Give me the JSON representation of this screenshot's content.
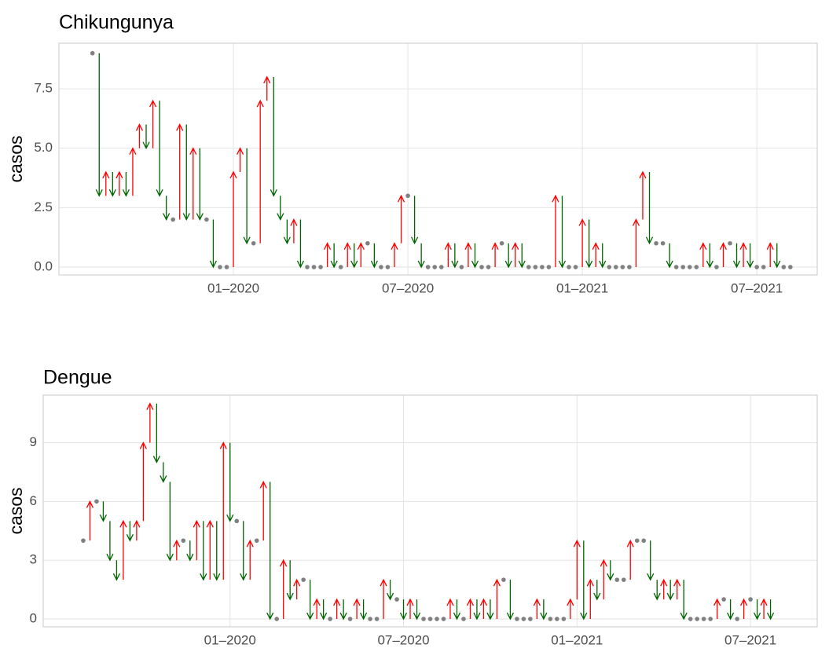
{
  "chart_data": [
    {
      "type": "arrow-change",
      "title": "Chikungunya",
      "y_label": "casos",
      "x": [
        -21,
        -20,
        -19,
        -18,
        -17,
        -16,
        -15,
        -14,
        -13,
        -12,
        -11,
        -10,
        -9,
        -8,
        -7,
        -6,
        -5,
        -4,
        -3,
        -2,
        -1,
        0,
        1,
        2,
        3,
        4,
        5,
        6,
        7,
        8,
        9,
        10,
        11,
        12,
        13,
        14,
        15,
        16,
        17,
        18,
        19,
        20,
        21,
        22,
        23,
        24,
        25,
        26,
        27,
        28,
        29,
        30,
        31,
        32,
        33,
        34,
        35,
        36,
        37,
        38,
        39,
        40,
        41,
        42,
        43,
        44,
        45,
        46,
        47,
        48,
        49,
        50,
        51,
        52,
        53,
        54,
        55,
        56,
        57,
        58,
        59,
        60,
        61,
        62,
        63,
        64,
        65,
        66,
        67,
        68,
        69,
        70,
        71,
        72,
        73,
        74,
        75,
        76,
        77,
        78,
        79,
        80,
        81,
        82,
        83
      ],
      "values": [
        9,
        3,
        4,
        3,
        4,
        3,
        5,
        6,
        5,
        7,
        3,
        2,
        2,
        6,
        2,
        5,
        2,
        2,
        0,
        0,
        0,
        4,
        5,
        1,
        1,
        7,
        8,
        3,
        2,
        1,
        2,
        0,
        0,
        0,
        0,
        1,
        0,
        0,
        1,
        0,
        1,
        1,
        0,
        0,
        0,
        1,
        3,
        3,
        1,
        0,
        0,
        0,
        0,
        1,
        0,
        0,
        1,
        0,
        0,
        0,
        1,
        1,
        0,
        1,
        0,
        0,
        0,
        0,
        0,
        3,
        0,
        0,
        0,
        2,
        0,
        1,
        0,
        0,
        0,
        0,
        0,
        2,
        4,
        1,
        1,
        1,
        0,
        0,
        0,
        0,
        0,
        1,
        0,
        0,
        1,
        1,
        0,
        1,
        0,
        0,
        0,
        1,
        0,
        0,
        0
      ],
      "xlim": [
        -26,
        87
      ],
      "xticks": [
        {
          "value": 0,
          "label": "01–2020"
        },
        {
          "value": 26,
          "label": "07–2020"
        },
        {
          "value": 52,
          "label": "01–2021"
        },
        {
          "value": 78,
          "label": "07–2021"
        }
      ],
      "ylim": [
        -0.33,
        9.42
      ],
      "yticks": [
        {
          "value": 0,
          "label": "0.0"
        },
        2.5,
        {
          "value": 5,
          "label": "5.0"
        },
        7.5
      ],
      "grid": true,
      "up_color": "#ff0000",
      "down_color": "#006400",
      "flat_color": "#808080"
    },
    {
      "type": "arrow-change",
      "title": "Dengue",
      "y_label": "casos",
      "x": [
        -22,
        -21,
        -20,
        -19,
        -18,
        -17,
        -16,
        -15,
        -14,
        -13,
        -12,
        -11,
        -10,
        -9,
        -8,
        -7,
        -6,
        -5,
        -4,
        -3,
        -2,
        -1,
        0,
        1,
        2,
        3,
        4,
        5,
        6,
        7,
        8,
        9,
        10,
        11,
        12,
        13,
        14,
        15,
        16,
        17,
        18,
        19,
        20,
        21,
        22,
        23,
        24,
        25,
        26,
        27,
        28,
        29,
        30,
        31,
        32,
        33,
        34,
        35,
        36,
        37,
        38,
        39,
        40,
        41,
        42,
        43,
        44,
        45,
        46,
        47,
        48,
        49,
        50,
        51,
        52,
        53,
        54,
        55,
        56,
        57,
        58,
        59,
        60,
        61,
        62,
        63,
        64,
        65,
        66,
        67,
        68,
        69,
        70,
        71,
        72,
        73,
        74,
        75,
        76,
        77,
        78,
        79,
        80,
        81
      ],
      "values": [
        4,
        6,
        6,
        5,
        3,
        2,
        5,
        4,
        5,
        9,
        11,
        8,
        7,
        3,
        4,
        4,
        3,
        5,
        2,
        5,
        2,
        9,
        5,
        5,
        2,
        4,
        4,
        7,
        0,
        0,
        3,
        1,
        2,
        2,
        0,
        1,
        0,
        0,
        1,
        0,
        0,
        1,
        0,
        0,
        0,
        2,
        1,
        1,
        0,
        1,
        0,
        0,
        0,
        0,
        0,
        1,
        0,
        0,
        1,
        0,
        1,
        0,
        2,
        2,
        0,
        0,
        0,
        0,
        1,
        0,
        0,
        0,
        0,
        1,
        4,
        0,
        2,
        1,
        3,
        2,
        2,
        2,
        4,
        4,
        4,
        2,
        1,
        2,
        1,
        2,
        0,
        0,
        0,
        0,
        0,
        1,
        1,
        0,
        0,
        1,
        1,
        0,
        1,
        0
      ],
      "xlim": [
        -28,
        88
      ],
      "xticks": [
        {
          "value": 0,
          "label": "01–2020"
        },
        {
          "value": 26,
          "label": "07–2020"
        },
        {
          "value": 52,
          "label": "01–2021"
        },
        {
          "value": 78,
          "label": "07–2021"
        }
      ],
      "ylim": [
        -0.4,
        11.43
      ],
      "yticks": [
        0,
        3,
        6,
        9
      ],
      "grid": true,
      "up_color": "#ff0000",
      "down_color": "#006400",
      "flat_color": "#808080"
    }
  ]
}
